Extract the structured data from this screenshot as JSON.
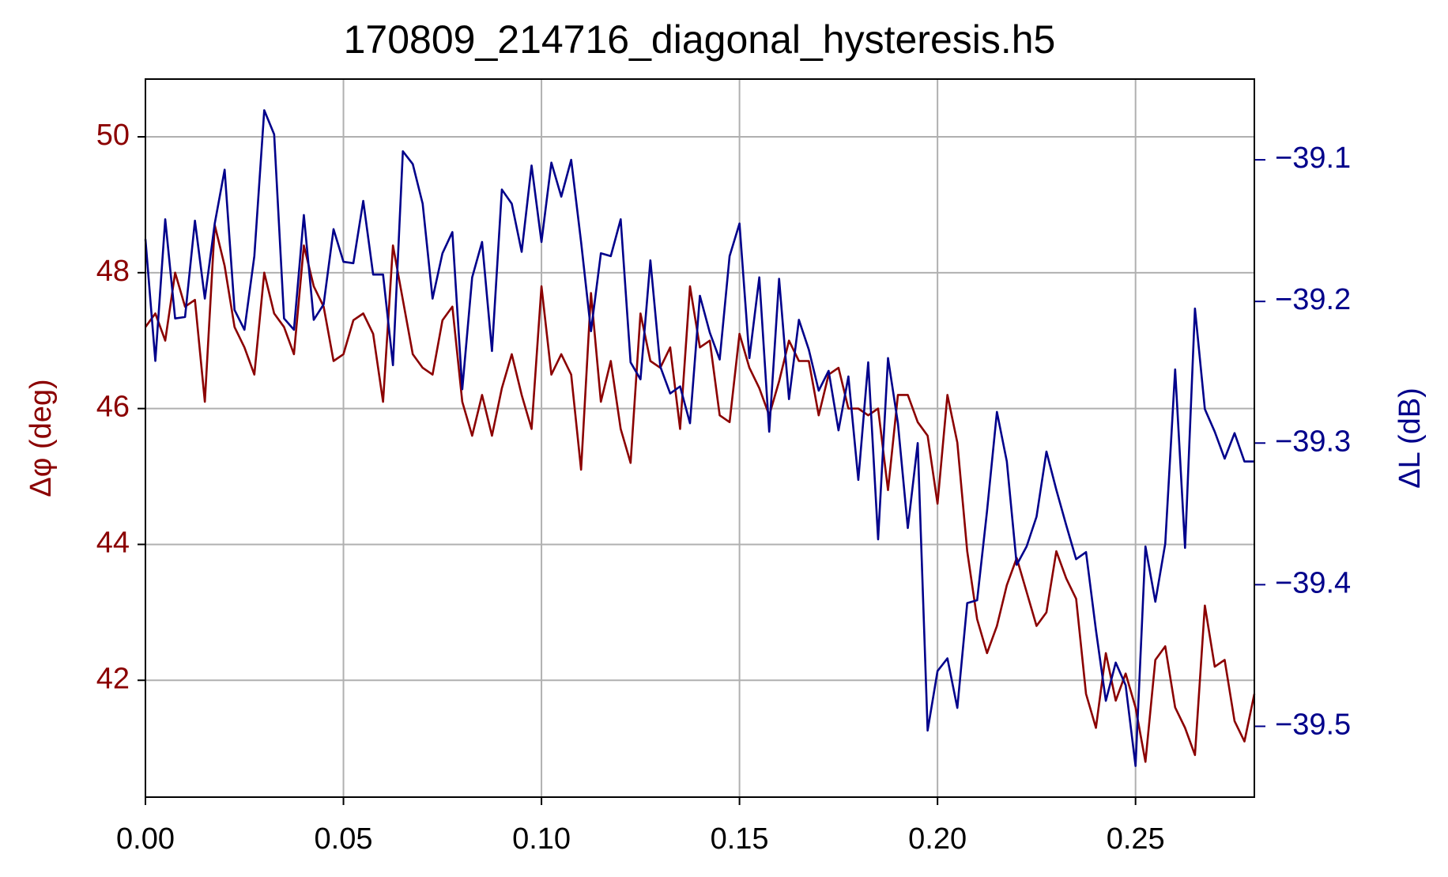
{
  "chart_data": {
    "type": "line",
    "title": "170809_214716_diagonal_hysteresis.h5",
    "y_label": "Δφ (deg)",
    "y2_label": "ΔL (dB)",
    "grid": true,
    "x": [
      0,
      0.0025,
      0.005,
      0.0075,
      0.01,
      0.0125,
      0.015,
      0.0175,
      0.02,
      0.0225,
      0.025,
      0.0275,
      0.03,
      0.0325,
      0.035,
      0.0375,
      0.04,
      0.0425,
      0.045,
      0.0475,
      0.05,
      0.0525,
      0.055,
      0.0575,
      0.06,
      0.0625,
      0.065,
      0.0675,
      0.07,
      0.0725,
      0.075,
      0.0775,
      0.08,
      0.0825,
      0.085,
      0.0875,
      0.09,
      0.0925,
      0.095,
      0.0975,
      0.1,
      0.1025,
      0.105,
      0.1075,
      0.11,
      0.1125,
      0.115,
      0.1175,
      0.12,
      0.1225,
      0.125,
      0.1275,
      0.13,
      0.1325,
      0.135,
      0.1375,
      0.14,
      0.1425,
      0.145,
      0.1475,
      0.15,
      0.1525,
      0.155,
      0.1575,
      0.16,
      0.1625,
      0.165,
      0.1675,
      0.17,
      0.1725,
      0.175,
      0.1775,
      0.18,
      0.1825,
      0.185,
      0.1875,
      0.19,
      0.1925,
      0.195,
      0.1975,
      0.2,
      0.2025,
      0.205,
      0.2075,
      0.21,
      0.2125,
      0.215,
      0.2175,
      0.22,
      0.2225,
      0.225,
      0.2275,
      0.23,
      0.2325,
      0.235,
      0.2375,
      0.24,
      0.2425,
      0.245,
      0.2475,
      0.25,
      0.2525,
      0.255,
      0.2575,
      0.26,
      0.2625,
      0.265,
      0.2675,
      0.27,
      0.2725,
      0.275,
      0.2775,
      0.28
    ],
    "series": [
      {
        "color": "#8b0000",
        "axis": "y",
        "values": [
          47.2,
          47.4,
          47.0,
          48.0,
          47.5,
          47.6,
          46.1,
          48.7,
          48.1,
          47.2,
          46.9,
          46.5,
          48.0,
          47.4,
          47.2,
          46.8,
          48.4,
          47.8,
          47.5,
          46.7,
          46.8,
          47.3,
          47.4,
          47.1,
          46.1,
          48.4,
          47.6,
          46.8,
          46.6,
          46.5,
          47.3,
          47.5,
          46.1,
          45.6,
          46.2,
          45.6,
          46.3,
          46.8,
          46.2,
          45.7,
          47.8,
          46.5,
          46.8,
          46.5,
          45.1,
          47.7,
          46.1,
          46.7,
          45.7,
          45.2,
          47.4,
          46.7,
          46.6,
          46.9,
          45.7,
          47.8,
          46.9,
          47.0,
          45.9,
          45.8,
          47.1,
          46.6,
          46.3,
          45.9,
          46.4,
          47.0,
          46.7,
          46.7,
          45.9,
          46.5,
          46.6,
          46.0,
          46.0,
          45.9,
          46.0,
          44.8,
          46.2,
          46.2,
          45.8,
          45.6,
          44.6,
          46.2,
          45.5,
          43.9,
          42.9,
          42.4,
          42.8,
          43.4,
          43.8,
          43.3,
          42.8,
          43.0,
          43.9,
          43.5,
          43.2,
          41.8,
          41.3,
          42.4,
          41.7,
          42.1,
          41.6,
          40.8,
          42.3,
          42.5,
          41.6,
          41.3,
          40.9,
          43.1,
          42.2,
          42.3,
          41.4,
          41.1,
          41.8
        ]
      },
      {
        "color": "#00008b",
        "axis": "y2",
        "values": [
          -39.156,
          -39.242,
          -39.142,
          -39.212,
          -39.211,
          -39.143,
          -39.198,
          -39.145,
          -39.107,
          -39.206,
          -39.22,
          -39.168,
          -39.065,
          -39.082,
          -39.212,
          -39.22,
          -39.139,
          -39.213,
          -39.202,
          -39.149,
          -39.172,
          -39.173,
          -39.129,
          -39.181,
          -39.181,
          -39.245,
          -39.094,
          -39.103,
          -39.131,
          -39.198,
          -39.166,
          -39.151,
          -39.262,
          -39.183,
          -39.158,
          -39.235,
          -39.121,
          -39.131,
          -39.165,
          -39.104,
          -39.158,
          -39.102,
          -39.126,
          -39.1,
          -39.158,
          -39.221,
          -39.166,
          -39.168,
          -39.142,
          -39.243,
          -39.255,
          -39.171,
          -39.246,
          -39.265,
          -39.26,
          -39.286,
          -39.196,
          -39.222,
          -39.241,
          -39.168,
          -39.145,
          -39.24,
          -39.183,
          -39.292,
          -39.184,
          -39.269,
          -39.213,
          -39.234,
          -39.263,
          -39.249,
          -39.291,
          -39.253,
          -39.326,
          -39.243,
          -39.368,
          -39.24,
          -39.286,
          -39.36,
          -39.3,
          -39.503,
          -39.461,
          -39.452,
          -39.487,
          -39.413,
          -39.411,
          -39.348,
          -39.278,
          -39.313,
          -39.386,
          -39.373,
          -39.352,
          -39.306,
          -39.333,
          -39.358,
          -39.382,
          -39.377,
          -39.432,
          -39.482,
          -39.455,
          -39.471,
          -39.528,
          -39.373,
          -39.412,
          -39.371,
          -39.248,
          -39.374,
          -39.205,
          -39.276,
          -39.292,
          -39.311,
          -39.293,
          -39.313,
          -39.313
        ]
      }
    ],
    "xlim": [
      0,
      0.28
    ],
    "xticks": [
      {
        "value": 0,
        "label": "0.00"
      },
      {
        "value": 0.05,
        "label": "0.05"
      },
      {
        "value": 0.1,
        "label": "0.10"
      },
      {
        "value": 0.15,
        "label": "0.15"
      },
      {
        "value": 0.2,
        "label": "0.20"
      },
      {
        "value": 0.25,
        "label": "0.25"
      }
    ],
    "ylim": [
      40.28,
      50.85
    ],
    "yticks": [
      42,
      44,
      46,
      48,
      50
    ],
    "y2lim": [
      -39.55,
      -39.043
    ],
    "y2ticks": [
      {
        "value": -39.5,
        "label": "−39.5"
      },
      {
        "value": -39.4,
        "label": "−39.4"
      },
      {
        "value": -39.3,
        "label": "−39.3"
      },
      {
        "value": -39.2,
        "label": "−39.2"
      },
      {
        "value": -39.1,
        "label": "−39.1"
      }
    ]
  }
}
